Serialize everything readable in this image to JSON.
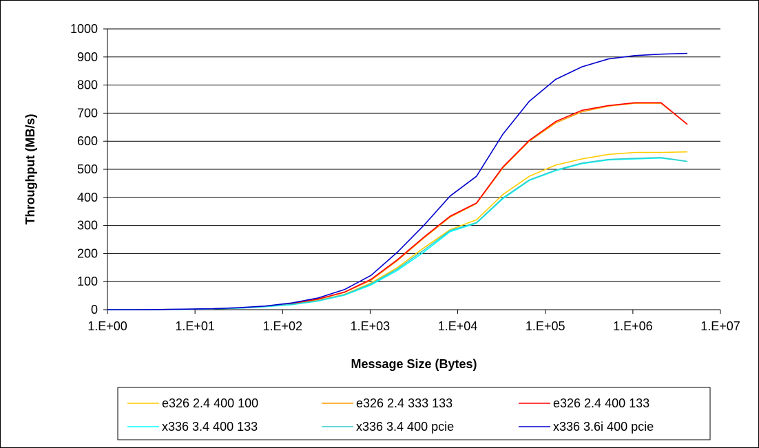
{
  "chart_data": {
    "type": "line",
    "x_scale": "log",
    "xlabel": "Message Size (Bytes)",
    "ylabel": "Throughput (MB/s)",
    "xlim": [
      1,
      10000000
    ],
    "ylim": [
      0,
      1000
    ],
    "x_ticks": [
      "1.E+00",
      "1.E+01",
      "1.E+02",
      "1.E+03",
      "1.E+04",
      "1.E+05",
      "1.E+06",
      "1.E+07"
    ],
    "y_ticks": [
      "0",
      "100",
      "200",
      "300",
      "400",
      "500",
      "600",
      "700",
      "800",
      "900",
      "1000"
    ],
    "grid": "horizontal",
    "legend_position": "bottom",
    "x": [
      1,
      2,
      4,
      8,
      16,
      32,
      64,
      128,
      256,
      512,
      1024,
      2048,
      4096,
      8192,
      16384,
      32768,
      65536,
      131072,
      262144,
      524288,
      1048576,
      2097152,
      4194304
    ],
    "series": [
      {
        "name": "e326 2.4 400 100",
        "color": "#ffcc00",
        "values": [
          0,
          0,
          0.5,
          1.5,
          3,
          6,
          11,
          19,
          33,
          55,
          95,
          150,
          220,
          285,
          320,
          410,
          475,
          515,
          537,
          553,
          560,
          560,
          562
        ]
      },
      {
        "name": "e326 2.4 333 133",
        "color": "#ff9900",
        "values": [
          0,
          0,
          0.5,
          1.5,
          3,
          6,
          12,
          21,
          37,
          62,
          105,
          175,
          255,
          330,
          378,
          505,
          600,
          665,
          705,
          725,
          735,
          735,
          660
        ]
      },
      {
        "name": "e326 2.4 400 133",
        "color": "#ff0000",
        "values": [
          0,
          0,
          0.5,
          1.5,
          3,
          6,
          12,
          22,
          38,
          63,
          108,
          178,
          258,
          333,
          380,
          508,
          603,
          670,
          710,
          727,
          737,
          737,
          660
        ]
      },
      {
        "name": "x336 3.4 400 133",
        "color": "#00ffff",
        "values": [
          0,
          0,
          0.5,
          1.5,
          3,
          5.5,
          10.5,
          18,
          31,
          52,
          88,
          140,
          205,
          278,
          308,
          395,
          460,
          495,
          520,
          533,
          537,
          540,
          528
        ]
      },
      {
        "name": "x336 3.4 400 pcie",
        "color": "#33cccc",
        "values": [
          0,
          0,
          0.5,
          1.5,
          3,
          5.5,
          11,
          19,
          32,
          54,
          92,
          145,
          212,
          282,
          310,
          398,
          462,
          497,
          522,
          535,
          539,
          542,
          528
        ]
      },
      {
        "name": "x336 3.6i 400 pcie",
        "color": "#0000cc",
        "values": [
          0,
          0,
          0.5,
          2,
          3.5,
          7,
          13,
          24,
          42,
          72,
          122,
          205,
          300,
          405,
          475,
          625,
          742,
          820,
          865,
          893,
          905,
          910,
          913
        ]
      }
    ]
  }
}
